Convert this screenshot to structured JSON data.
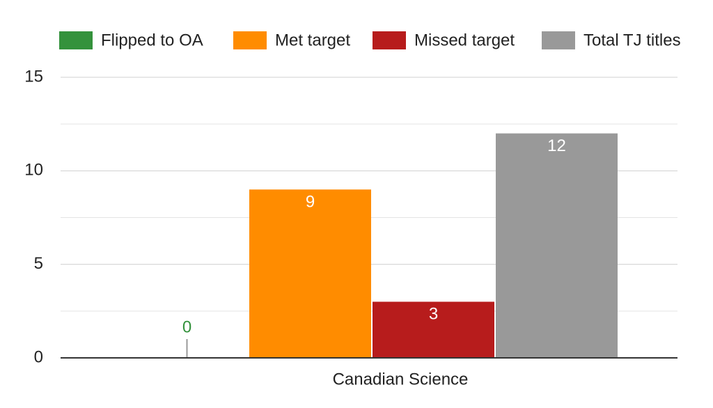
{
  "chart_data": {
    "type": "bar",
    "categories": [
      "Canadian Science"
    ],
    "series": [
      {
        "name": "Flipped to OA",
        "color": "#34923c",
        "values": [
          0
        ]
      },
      {
        "name": "Met target",
        "color": "#ff8c00",
        "values": [
          9
        ]
      },
      {
        "name": "Missed target",
        "color": "#b71c1c",
        "values": [
          3
        ]
      },
      {
        "name": "Total TJ titles",
        "color": "#999999",
        "values": [
          12
        ]
      }
    ],
    "ylim": [
      0,
      15
    ],
    "yticks": [
      0,
      5,
      10,
      15
    ],
    "minor_yticks": [
      2.5,
      7.5,
      12.5
    ],
    "grid": true,
    "legend": "top"
  }
}
